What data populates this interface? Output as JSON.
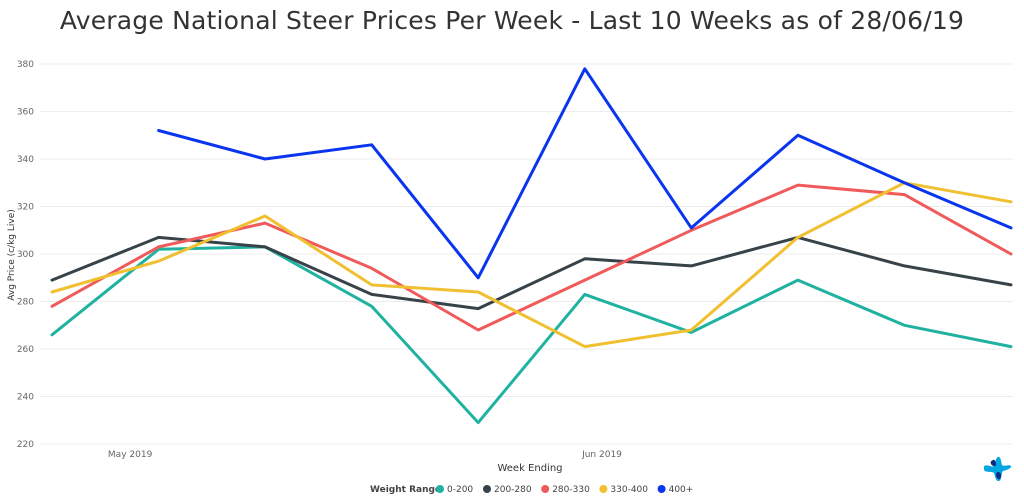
{
  "chart_data": {
    "type": "line",
    "title": "Average National Steer Prices Per Week - Last 10 Weeks as of 28/06/19",
    "xlabel": "Week Ending",
    "ylabel": "Avg Price (c/kg Live)",
    "ylim": [
      220,
      380
    ],
    "yticks": [
      220,
      240,
      260,
      280,
      300,
      320,
      340,
      360,
      380
    ],
    "grid": true,
    "x": [
      "2019-04-26",
      "2019-05-03",
      "2019-05-10",
      "2019-05-17",
      "2019-05-24",
      "2019-05-31",
      "2019-06-07",
      "2019-06-14",
      "2019-06-21",
      "2019-06-28"
    ],
    "xticks": [
      {
        "date": "2019-05-01",
        "label": "May 2019"
      },
      {
        "date": "2019-06-01",
        "label": "Jun 2019"
      }
    ],
    "legend_title": "Weight Range",
    "legend_position": "bottom",
    "series": [
      {
        "name": "0-200",
        "color": "#20b2a0",
        "values": [
          266,
          302,
          303,
          278,
          229,
          283,
          267,
          289,
          270,
          261
        ]
      },
      {
        "name": "200-280",
        "color": "#374249",
        "values": [
          289,
          307,
          303,
          283,
          277,
          298,
          295,
          307,
          295,
          287
        ]
      },
      {
        "name": "280-330",
        "color": "#f05a5a",
        "values": [
          278,
          303,
          313,
          294,
          268,
          289,
          310,
          329,
          325,
          300
        ]
      },
      {
        "name": "330-400",
        "color": "#f0c030",
        "values": [
          284,
          297,
          316,
          287,
          284,
          261,
          268,
          307,
          330,
          322
        ]
      },
      {
        "name": "400+",
        "color": "#0a35ef",
        "values": [
          null,
          352,
          340,
          346,
          290,
          378,
          311,
          350,
          330,
          311
        ]
      }
    ]
  },
  "logo": {
    "colors": [
      "#00a7e1",
      "#0c2d83"
    ],
    "icon": "brand-cross-logo"
  }
}
